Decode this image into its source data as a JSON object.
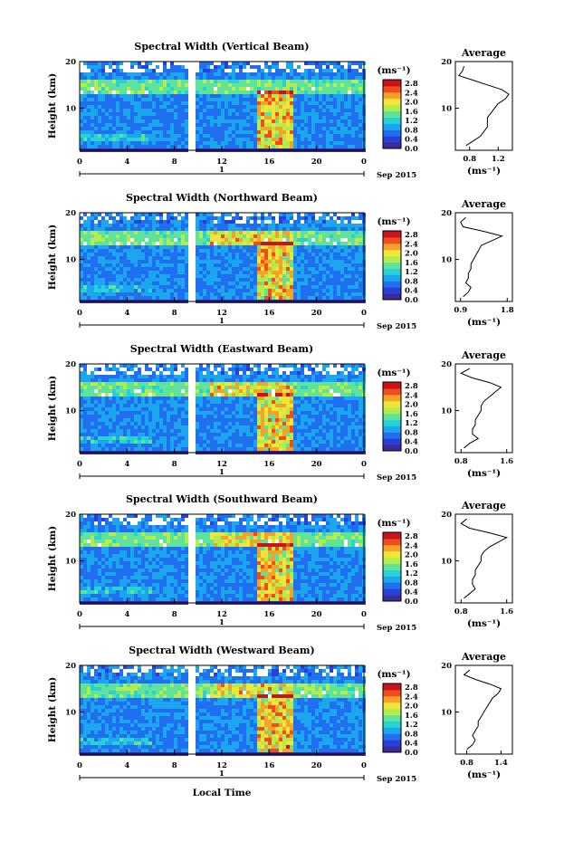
{
  "colors": {
    "colormap": [
      "#3b2a98",
      "#2a3fd6",
      "#1f6ff0",
      "#1da6f0",
      "#27d2d6",
      "#5fe39a",
      "#b5ec4d",
      "#f2e53a",
      "#f5a328",
      "#ef4c1f",
      "#c8151b"
    ],
    "background": "#ffffff",
    "gap": "#ffffff"
  },
  "x_axis": {
    "ticks": [
      "0",
      "4",
      "8",
      "12",
      "16",
      "20",
      "0"
    ],
    "date_marker": "1",
    "date_label": "Sep 2015",
    "xlabel": "Local Time"
  },
  "y_axis": {
    "label": "Height (km)",
    "ticks": [
      "20",
      "10"
    ]
  },
  "colorbar": {
    "unit": "(ms⁻¹)",
    "ticks": [
      "2.8",
      "2.4",
      "2.0",
      "1.6",
      "1.2",
      "0.8",
      "0.4",
      "0.0"
    ]
  },
  "profile": {
    "title": "Average",
    "unit": "(ms⁻¹)"
  },
  "chart_data": [
    {
      "type": "heatmap",
      "title": "Spectral Width (Vertical Beam)",
      "x": [
        0,
        24
      ],
      "y": [
        1,
        20
      ],
      "xlabel": "",
      "ylabel": "Height (km)",
      "colorbar_range": [
        0.0,
        2.8
      ],
      "data_gap_hours": [
        9.2,
        9.6
      ],
      "profile": {
        "title": "Average",
        "xticks": [
          "0.8",
          "1.2"
        ],
        "xlim": [
          0.6,
          1.4
        ],
        "ylim": [
          1,
          20
        ],
        "heights": [
          2,
          3,
          4,
          5,
          6,
          7,
          8,
          9,
          10,
          11,
          12,
          13,
          14,
          15,
          16,
          17,
          18,
          19
        ],
        "values": [
          0.75,
          0.85,
          0.95,
          1.0,
          1.05,
          1.05,
          1.05,
          1.1,
          1.15,
          1.2,
          1.3,
          1.35,
          1.25,
          1.05,
          0.85,
          0.65,
          0.7,
          0.72
        ]
      }
    },
    {
      "type": "heatmap",
      "title": "Spectral Width (Northward Beam)",
      "x": [
        0,
        24
      ],
      "y": [
        1,
        20
      ],
      "xlabel": "",
      "ylabel": "Height (km)",
      "colorbar_range": [
        0.0,
        2.8
      ],
      "data_gap_hours": [
        9.2,
        9.6
      ],
      "profile": {
        "title": "Average",
        "xticks": [
          "0.9",
          "1.8"
        ],
        "xlim": [
          0.8,
          1.9
        ],
        "ylim": [
          1,
          20
        ],
        "heights": [
          2,
          3,
          4,
          5,
          6,
          7,
          8,
          9,
          10,
          11,
          12,
          13,
          14,
          15,
          16,
          17,
          18,
          19
        ],
        "values": [
          0.95,
          1.05,
          1.1,
          1.0,
          1.05,
          1.05,
          1.1,
          1.1,
          1.15,
          1.2,
          1.25,
          1.3,
          1.5,
          1.7,
          1.35,
          0.95,
          0.9,
          1.0
        ]
      }
    },
    {
      "type": "heatmap",
      "title": "Spectral Width (Eastward Beam)",
      "x": [
        0,
        24
      ],
      "y": [
        1,
        20
      ],
      "xlabel": "",
      "ylabel": "Height (km)",
      "colorbar_range": [
        0.0,
        2.8
      ],
      "data_gap_hours": [
        9.2,
        9.6
      ],
      "profile": {
        "title": "Average",
        "xticks": [
          "0.8",
          "1.6"
        ],
        "xlim": [
          0.7,
          1.7
        ],
        "ylim": [
          1,
          20
        ],
        "heights": [
          2,
          3,
          4,
          5,
          6,
          7,
          8,
          9,
          10,
          11,
          12,
          13,
          14,
          15,
          16,
          17,
          18,
          19
        ],
        "values": [
          0.85,
          0.95,
          1.1,
          1.0,
          1.0,
          1.05,
          1.05,
          1.1,
          1.15,
          1.15,
          1.2,
          1.3,
          1.4,
          1.5,
          1.3,
          1.0,
          0.8,
          0.95
        ]
      }
    },
    {
      "type": "heatmap",
      "title": "Spectral Width (Southward Beam)",
      "x": [
        0,
        24
      ],
      "y": [
        1,
        20
      ],
      "xlabel": "",
      "ylabel": "Height (km)",
      "colorbar_range": [
        0.0,
        2.8
      ],
      "data_gap_hours": [
        9.2,
        9.6
      ],
      "profile": {
        "title": "Average",
        "xticks": [
          "0.8",
          "1.6"
        ],
        "xlim": [
          0.7,
          1.7
        ],
        "ylim": [
          1,
          20
        ],
        "heights": [
          2,
          3,
          4,
          5,
          6,
          7,
          8,
          9,
          10,
          11,
          12,
          13,
          14,
          15,
          16,
          17,
          18,
          19
        ],
        "values": [
          0.85,
          0.95,
          1.05,
          1.0,
          1.0,
          1.05,
          1.05,
          1.1,
          1.15,
          1.15,
          1.2,
          1.3,
          1.45,
          1.6,
          1.3,
          0.95,
          0.8,
          0.9
        ]
      }
    },
    {
      "type": "heatmap",
      "title": "Spectral Width (Westward Beam)",
      "x": [
        0,
        24
      ],
      "y": [
        1,
        20
      ],
      "xlabel": "Local Time",
      "ylabel": "Height (km)",
      "colorbar_range": [
        0.0,
        2.8
      ],
      "data_gap_hours": [
        9.2,
        9.6
      ],
      "profile": {
        "title": "Average",
        "xticks": [
          "0.8",
          "1.4"
        ],
        "xlim": [
          0.6,
          1.6
        ],
        "ylim": [
          1,
          20
        ],
        "heights": [
          2,
          3,
          4,
          5,
          6,
          7,
          8,
          9,
          10,
          11,
          12,
          13,
          14,
          15,
          16,
          17,
          18,
          19
        ],
        "values": [
          0.8,
          0.9,
          0.95,
          0.9,
          0.95,
          1.0,
          1.0,
          1.05,
          1.1,
          1.15,
          1.2,
          1.25,
          1.35,
          1.4,
          1.2,
          0.95,
          0.75,
          0.85
        ]
      }
    }
  ]
}
